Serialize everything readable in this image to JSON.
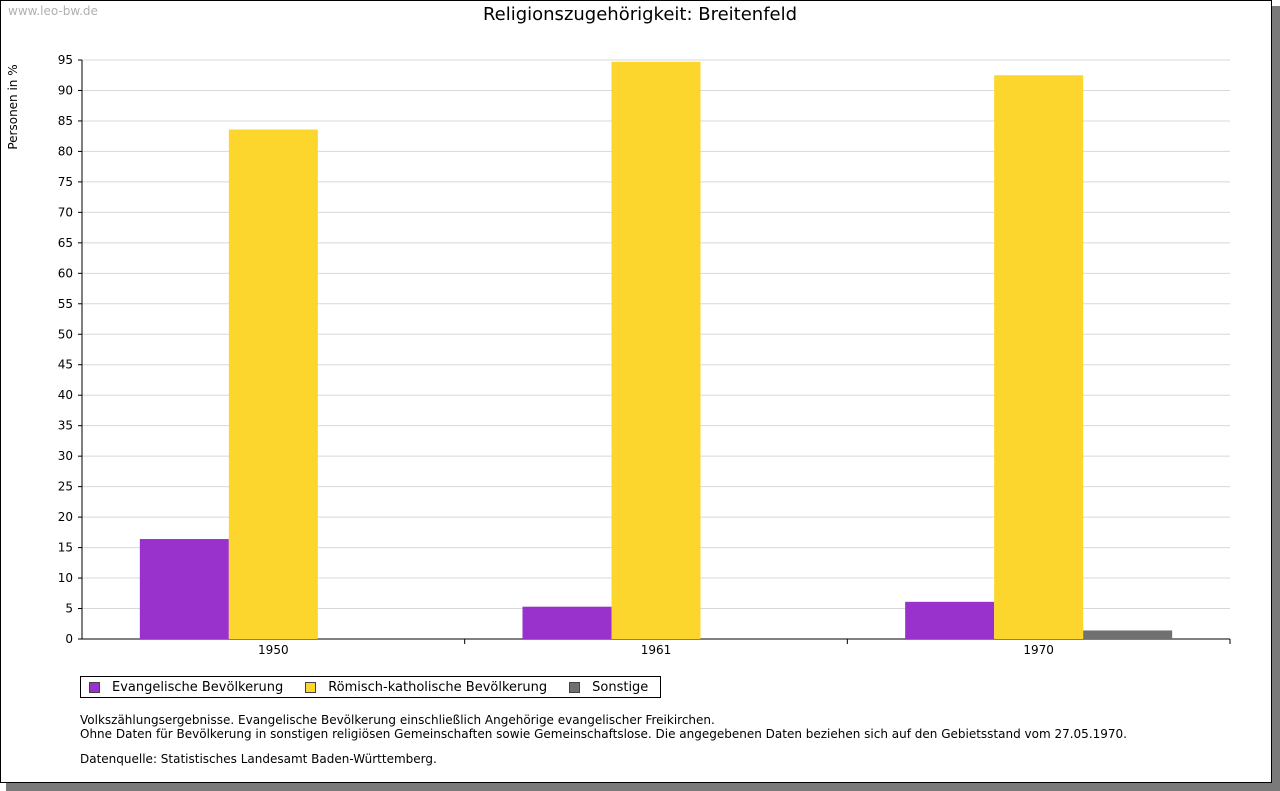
{
  "watermark": "www.leo-bw.de",
  "colors": {
    "evangelisch": "#9932cc",
    "katholisch": "#fcd62c",
    "sonstige": "#707070",
    "grid": "#d8d8d8"
  },
  "legend": [
    {
      "label": "Evangelische Bevölkerung",
      "color": "#9932cc"
    },
    {
      "label": "Römisch-katholische Bevölkerung",
      "color": "#fcd62c"
    },
    {
      "label": "Sonstige",
      "color": "#707070"
    }
  ],
  "notes": {
    "line1": "Volkszählungsergebnisse. Evangelische Bevölkerung einschließlich Angehörige evangelischer Freikirchen.",
    "line2": "Ohne Daten für Bevölkerung in sonstigen religiösen Gemeinschaften sowie Gemeinschaftslose. Die angegebenen Daten beziehen sich auf den Gebietsstand vom 27.05.1970.",
    "source": "Datenquelle: Statistisches Landesamt Baden-Württemberg."
  },
  "chart_data": {
    "type": "bar",
    "title": "Religionszugehörigkeit: Breitenfeld",
    "xlabel": "",
    "ylabel": "Personen in %",
    "categories": [
      "1950",
      "1961",
      "1970"
    ],
    "series": [
      {
        "name": "Evangelische Bevölkerung",
        "values": [
          16.4,
          5.3,
          6.1
        ]
      },
      {
        "name": "Römisch-katholische Bevölkerung",
        "values": [
          83.6,
          94.7,
          92.5
        ]
      },
      {
        "name": "Sonstige",
        "values": [
          0,
          0,
          1.4
        ]
      }
    ],
    "ylim": [
      0,
      95
    ],
    "yticks": [
      0,
      5,
      10,
      15,
      20,
      25,
      30,
      35,
      40,
      45,
      50,
      55,
      60,
      65,
      70,
      75,
      80,
      85,
      90,
      95
    ],
    "grid": true,
    "legend_position": "bottom-left"
  }
}
